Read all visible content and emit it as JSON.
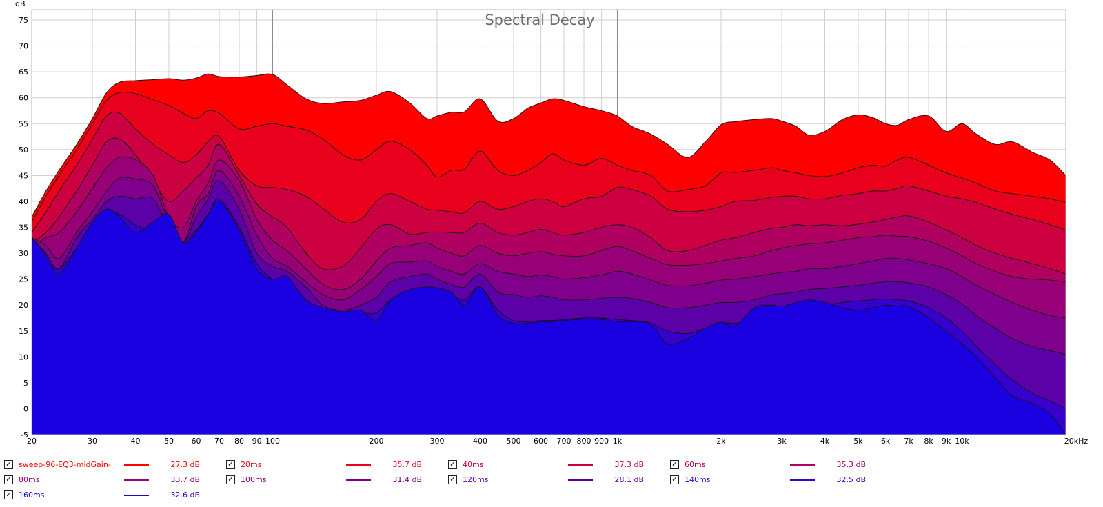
{
  "chart_data": {
    "type": "area",
    "title": "Spectral Decay",
    "ylabel": "dB",
    "xscale": "log",
    "xlim": [
      20,
      20000
    ],
    "ylim": [
      -5,
      77
    ],
    "grid": true,
    "y_ticks": [
      "-5",
      "0",
      "5",
      "10",
      "15",
      "20",
      "25",
      "30",
      "35",
      "40",
      "45",
      "50",
      "55",
      "60",
      "65",
      "70",
      "75"
    ],
    "x_ticks": [
      {
        "v": 20,
        "label": "20"
      },
      {
        "v": 30,
        "label": "30"
      },
      {
        "v": 40,
        "label": "40"
      },
      {
        "v": 50,
        "label": "50"
      },
      {
        "v": 60,
        "label": "60"
      },
      {
        "v": 70,
        "label": "70"
      },
      {
        "v": 80,
        "label": "80"
      },
      {
        "v": 90,
        "label": "90"
      },
      {
        "v": 100,
        "label": "100"
      },
      {
        "v": 200,
        "label": "200"
      },
      {
        "v": 300,
        "label": "300"
      },
      {
        "v": 400,
        "label": "400"
      },
      {
        "v": 500,
        "label": "500"
      },
      {
        "v": 600,
        "label": "600"
      },
      {
        "v": 700,
        "label": "700"
      },
      {
        "v": 800,
        "label": "800"
      },
      {
        "v": 900,
        "label": "900"
      },
      {
        "v": 1000,
        "label": "1k"
      },
      {
        "v": 2000,
        "label": "2k"
      },
      {
        "v": 3000,
        "label": "3k"
      },
      {
        "v": 4000,
        "label": "4k"
      },
      {
        "v": 5000,
        "label": "5k"
      },
      {
        "v": 6000,
        "label": "6k"
      },
      {
        "v": 7000,
        "label": "7k"
      },
      {
        "v": 8000,
        "label": "8k"
      },
      {
        "v": 9000,
        "label": "9k"
      },
      {
        "v": 10000,
        "label": "10k"
      },
      {
        "v": 20000,
        "label": "20kHz"
      }
    ],
    "x": [
      20,
      22,
      24,
      27,
      30,
      33,
      36,
      40,
      45,
      50,
      55,
      60,
      65,
      70,
      80,
      90,
      100,
      110,
      125,
      140,
      160,
      180,
      200,
      220,
      250,
      280,
      300,
      330,
      360,
      400,
      450,
      500,
      550,
      600,
      650,
      700,
      800,
      900,
      1000,
      1100,
      1250,
      1400,
      1600,
      1800,
      2000,
      2200,
      2500,
      2800,
      3000,
      3300,
      3600,
      4000,
      4500,
      5000,
      5500,
      6000,
      6500,
      7000,
      8000,
      9000,
      10000,
      11000,
      12500,
      14000,
      16000,
      18000,
      20000
    ],
    "series": [
      {
        "name": "sweep-96-EQ3-midGain-",
        "color": "#ff0000",
        "value_label": "27.3 dB",
        "values": [
          37,
          42,
          46,
          51,
          56,
          61,
          63,
          63.3,
          63.5,
          63.7,
          63.4,
          63.8,
          64.6,
          64.1,
          64.0,
          64.3,
          64.5,
          62.5,
          59.8,
          58.9,
          59.2,
          59.5,
          60.5,
          61.2,
          59,
          56,
          56.5,
          57.2,
          57.3,
          59.8,
          55.5,
          56,
          58,
          59,
          59.8,
          59.5,
          58.3,
          57.5,
          56.5,
          54.5,
          53,
          51,
          48.5,
          51.5,
          54.8,
          55.4,
          55.8,
          56,
          55.5,
          54.5,
          52.8,
          53.5,
          55.8,
          56.7,
          56.2,
          55,
          54.7,
          55.8,
          56.5,
          53.5,
          55,
          53,
          51,
          51.5,
          49.5,
          48,
          45
        ]
      },
      {
        "name": "20ms",
        "color": "#e8001c",
        "value_label": "35.7 dB",
        "values": [
          36,
          41,
          45,
          50,
          55,
          59.5,
          61,
          60.8,
          59.6,
          58.5,
          57,
          56,
          57.5,
          57,
          54,
          54.5,
          55,
          54.5,
          53.8,
          52,
          49,
          48,
          50,
          51.6,
          50,
          47,
          44.7,
          46,
          46.2,
          49.7,
          46,
          45,
          46,
          47.5,
          49.2,
          48,
          47,
          48.3,
          47,
          46,
          45,
          42,
          42.3,
          43,
          45.5,
          45.6,
          46,
          46.5,
          46,
          45.5,
          45,
          44.8,
          45.5,
          46.5,
          47,
          46.8,
          48,
          48.5,
          47,
          45.5,
          44.5,
          43.5,
          42,
          41.5,
          41,
          40.5,
          39.8
        ]
      },
      {
        "name": "40ms",
        "color": "#cc0040",
        "value_label": "37.3 dB",
        "values": [
          34,
          38,
          42,
          47,
          52,
          56.5,
          57,
          54,
          51,
          49,
          47.5,
          49,
          51.5,
          52.5,
          46,
          43,
          42.7,
          42.3,
          41,
          38.6,
          36,
          36.5,
          40,
          41.5,
          40,
          38.5,
          38.3,
          38,
          37.8,
          40,
          38.5,
          39,
          40,
          40.5,
          40,
          39,
          40.5,
          41,
          42.7,
          42.3,
          41,
          38.5,
          38,
          38.3,
          39,
          40,
          40.2,
          40.8,
          41,
          41,
          40.5,
          40.5,
          41.2,
          41.5,
          42,
          42,
          42.5,
          43,
          42,
          41,
          40.5,
          39.8,
          38.5,
          37.5,
          36.5,
          35.5,
          34.5
        ]
      },
      {
        "name": "60ms",
        "color": "#b00060",
        "value_label": "35.3 dB",
        "values": [
          32,
          34,
          37,
          42,
          47,
          51.5,
          52,
          49,
          44,
          40,
          42,
          44.5,
          47,
          51,
          45,
          39.5,
          37,
          35,
          30,
          27,
          27.5,
          31,
          34.7,
          35.5,
          33.7,
          34,
          34.1,
          34,
          34,
          35.8,
          34,
          33.5,
          34,
          34.6,
          34,
          33.5,
          34,
          35,
          35.5,
          35,
          33,
          30.5,
          30.5,
          31.5,
          32.5,
          33,
          34,
          34.8,
          35,
          35.5,
          35.3,
          35.5,
          35.3,
          35.6,
          36,
          36.5,
          37,
          37.2,
          36,
          34.5,
          33,
          31.5,
          30,
          29,
          28,
          27,
          26
        ]
      },
      {
        "name": "80ms",
        "color": "#980078",
        "value_label": "33.7 dB",
        "values": [
          31,
          33,
          34,
          38,
          42.5,
          46.5,
          48.5,
          48,
          45,
          37,
          35,
          40,
          43.5,
          48,
          44,
          36.5,
          32.5,
          30.5,
          27,
          24,
          23,
          25,
          28.5,
          31,
          31.5,
          32,
          31,
          30,
          29.5,
          31.5,
          30,
          29.5,
          30,
          30.3,
          29.8,
          29.5,
          29.5,
          30.5,
          31.3,
          30.5,
          29,
          27.8,
          27.7,
          28,
          28.5,
          29,
          29.5,
          30.5,
          31,
          31.5,
          31.8,
          32,
          32.5,
          33,
          33.2,
          33.5,
          33.3,
          33.2,
          32.3,
          31,
          29.5,
          28,
          26.5,
          25.5,
          25,
          24.8,
          24.5
        ]
      },
      {
        "name": "100ms",
        "color": "#80008e",
        "value_label": "31.4 dB",
        "values": [
          33,
          31.5,
          29,
          34,
          38,
          42,
          44.5,
          44.3,
          43,
          36,
          32,
          39,
          41.5,
          46,
          41,
          33.5,
          29,
          27.5,
          24.5,
          22,
          21,
          23,
          25.5,
          28,
          28.3,
          28.5,
          27.5,
          26.5,
          26,
          28,
          26.5,
          26,
          25.5,
          25.8,
          25.5,
          25,
          25.3,
          25.8,
          26.5,
          26,
          24.8,
          23.8,
          23.7,
          24.2,
          24.8,
          25,
          25.5,
          26,
          26.3,
          26.5,
          27,
          27,
          27.5,
          28,
          28.5,
          29,
          29,
          28.7,
          28,
          27,
          25.5,
          23.8,
          22,
          20.5,
          19,
          18,
          17.5
        ]
      },
      {
        "name": "120ms",
        "color": "#5c00a8",
        "value_label": "28.1 dB",
        "values": [
          33,
          30,
          27,
          33,
          36.5,
          40,
          41,
          40.5,
          40.5,
          35,
          32,
          37,
          40.5,
          44,
          38.5,
          30,
          27.5,
          26.5,
          23.5,
          20,
          19,
          20,
          21.5,
          24.5,
          25.5,
          26,
          25,
          24,
          23.5,
          26,
          22.5,
          22,
          21.5,
          21.8,
          21.5,
          21,
          21,
          21.3,
          21.5,
          21.3,
          20.5,
          19.5,
          19.5,
          20,
          20.5,
          20.5,
          21,
          22,
          22.2,
          22.5,
          23,
          23.2,
          23.5,
          23.8,
          24.2,
          24.5,
          24.5,
          24.3,
          23.5,
          22,
          20.2,
          18,
          15.5,
          13.5,
          12,
          11.2,
          10.5
        ]
      },
      {
        "name": "140ms",
        "color": "#3800cc",
        "value_label": "32.5 dB",
        "values": [
          33,
          29,
          27,
          31,
          35.5,
          38,
          37.5,
          35.5,
          34,
          33,
          32,
          34.5,
          37.5,
          40.5,
          35,
          28,
          25,
          24,
          21,
          19,
          18.5,
          18.5,
          18.5,
          21,
          22.5,
          23,
          22.8,
          22,
          21,
          23.5,
          19,
          17,
          16.8,
          17,
          17,
          17.2,
          17.5,
          17.5,
          17.2,
          17,
          16.5,
          15,
          14.5,
          15.5,
          16.5,
          16.5,
          17,
          18,
          18.5,
          19,
          19.5,
          20,
          20.5,
          20.8,
          21,
          21.2,
          21,
          20.8,
          19.5,
          17.5,
          15,
          12,
          8.5,
          5.5,
          3,
          1.5,
          0
        ]
      },
      {
        "name": "160ms",
        "color": "#1a00e0",
        "value_label": "32.6 dB",
        "values": [
          33,
          29.5,
          26,
          31,
          36,
          38.5,
          37,
          34,
          36,
          37.5,
          32,
          34,
          37.5,
          40,
          34.5,
          27,
          25,
          25.5,
          21,
          19.5,
          18.7,
          19,
          17,
          21,
          23,
          23.5,
          23.3,
          22.5,
          20,
          23.5,
          18,
          16.5,
          16.5,
          16.8,
          16.8,
          17,
          17.3,
          17.2,
          16.8,
          16.8,
          16.3,
          12.5,
          13.5,
          15.5,
          16.7,
          16,
          19.5,
          20,
          19.8,
          20.5,
          21,
          20.5,
          19.5,
          19,
          19.5,
          20,
          19.8,
          19.8,
          17.5,
          15,
          12.5,
          10,
          6,
          2.5,
          1,
          -1,
          -5
        ]
      }
    ]
  },
  "legend": {
    "check_glyph": "✓"
  }
}
